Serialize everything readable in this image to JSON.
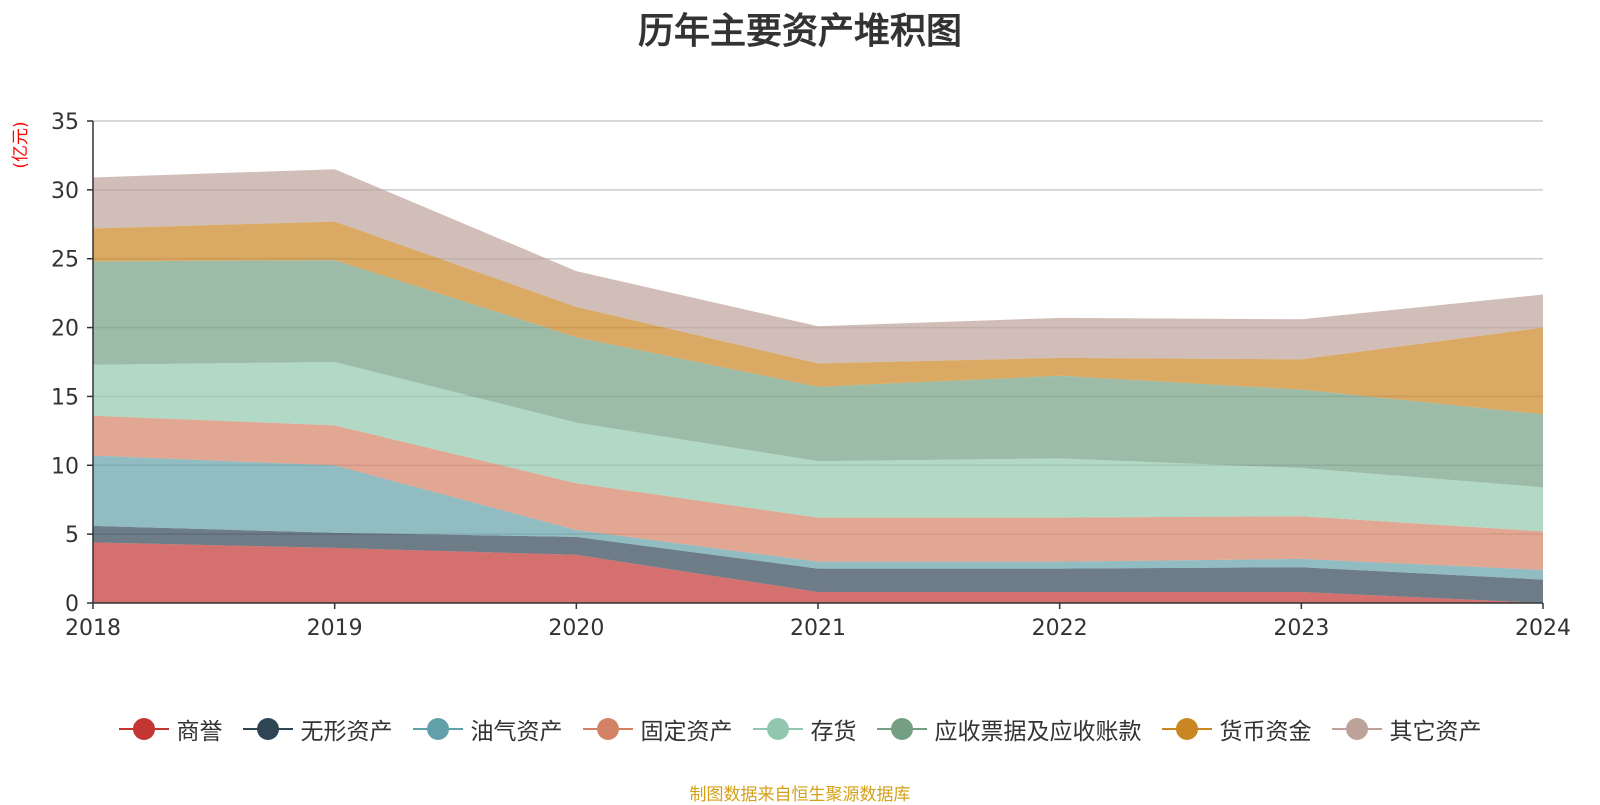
{
  "chart_data": {
    "type": "area",
    "stacked": true,
    "title": "历年主要资产堆积图",
    "ylabel": "(亿元)",
    "xlabel": "",
    "x": [
      "2018",
      "2019",
      "2020",
      "2021",
      "2022",
      "2023",
      "2024"
    ],
    "ylim": [
      0,
      35
    ],
    "yticks": [
      0,
      5,
      10,
      15,
      20,
      25,
      30,
      35
    ],
    "grid": true,
    "legend_position": "bottom",
    "series": [
      {
        "name": "商誉",
        "color": "#c23531",
        "values": [
          4.4,
          4.0,
          3.5,
          0.8,
          0.8,
          0.8,
          0.0
        ]
      },
      {
        "name": "无形资产",
        "color": "#2f4554",
        "values": [
          1.2,
          1.1,
          1.3,
          1.7,
          1.7,
          1.8,
          1.7
        ]
      },
      {
        "name": "油气资产",
        "color": "#61a0a8",
        "values": [
          5.1,
          4.9,
          0.5,
          0.5,
          0.5,
          0.6,
          0.7
        ]
      },
      {
        "name": "固定资产",
        "color": "#d48265",
        "values": [
          2.9,
          2.9,
          3.4,
          3.2,
          3.2,
          3.1,
          2.8
        ]
      },
      {
        "name": "存货",
        "color": "#91c7ae",
        "values": [
          3.7,
          4.6,
          4.4,
          4.1,
          4.3,
          3.5,
          3.2
        ]
      },
      {
        "name": "应收票据及应收账款",
        "color": "#749f83",
        "values": [
          7.5,
          7.4,
          6.2,
          5.4,
          6.0,
          5.7,
          5.3
        ]
      },
      {
        "name": "货币资金",
        "color": "#ca8622",
        "values": [
          2.4,
          2.8,
          2.2,
          1.7,
          1.3,
          2.2,
          6.3
        ]
      },
      {
        "name": "其它资产",
        "color": "#bda29a",
        "values": [
          3.7,
          3.8,
          2.6,
          2.7,
          2.9,
          2.9,
          2.4
        ]
      }
    ]
  },
  "source_note": "制图数据来自恒生聚源数据库"
}
